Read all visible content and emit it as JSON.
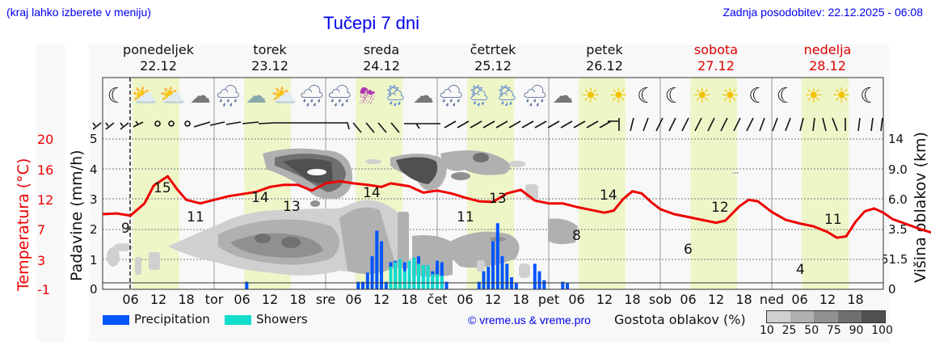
{
  "header": {
    "left_note": "(kraj lahko izberete v meniju)",
    "title": "Tučepi 7 dni",
    "updated": "Zadnja posodobitev: 22.12.2025 - 06:08"
  },
  "days": [
    {
      "name": "ponedeljek",
      "date": "22.12",
      "weekend": false
    },
    {
      "name": "torek",
      "date": "23.12",
      "weekend": false
    },
    {
      "name": "sreda",
      "date": "24.12",
      "weekend": false
    },
    {
      "name": "četrtek",
      "date": "25.12",
      "weekend": false
    },
    {
      "name": "petek",
      "date": "26.12",
      "weekend": false
    },
    {
      "name": "sobota",
      "date": "27.12",
      "weekend": true
    },
    {
      "name": "nedelja",
      "date": "28.12",
      "weekend": true
    }
  ],
  "axes": {
    "left_temp_label": "Temperatura (°C)",
    "left_precip_label": "Padavine (mm/h)",
    "right_label": "Višina oblakov (km)",
    "temp_ticks": [
      "20",
      "16",
      "12",
      "7",
      "3",
      "-1"
    ],
    "precip_ticks": [
      "5",
      "4",
      "3",
      "2",
      "1",
      "0"
    ],
    "cloud_ticks": [
      "14",
      "9.0",
      "6.0",
      "3.5",
      "51.5",
      "0"
    ],
    "x_ticks": [
      "06",
      "12",
      "18",
      "tor",
      "06",
      "12",
      "18",
      "sre",
      "06",
      "12",
      "18",
      "čet",
      "06",
      "12",
      "18",
      "pet",
      "06",
      "12",
      "18",
      "sob",
      "06",
      "12",
      "18",
      "ned",
      "06",
      "12",
      "18"
    ]
  },
  "weather_icons": [
    "moon",
    "sun-cloud",
    "sun-cloud",
    "moon-cloud",
    "moon-cloud-rain",
    "cloud",
    "sun-cloud",
    "cloud-rain",
    "moon-cloud-rain",
    "sun-thunder",
    "sun-cloud-rain",
    "moon-cloud",
    "moon-cloud-rain",
    "sun-cloud-rain",
    "sun-cloud-rain",
    "moon-cloud-rain",
    "moon-cloud",
    "sun",
    "sun",
    "moon",
    "moon",
    "sun",
    "sun",
    "moon",
    "moon",
    "sun",
    "sun",
    "moon"
  ],
  "legend": {
    "precipitation": "Precipitation",
    "showers": "Showers",
    "precip_color": "#0055ff",
    "showers_color": "#11ddcc",
    "copyright": "© vreme.us & vreme.pro",
    "cloud_density_label": "Gostota oblakov (%)",
    "cloud_density_ticks": [
      "10",
      "25",
      "50",
      "75",
      "90",
      "100"
    ],
    "cloud_density_colors": [
      "#d0d0d0",
      "#b0b0b0",
      "#909090",
      "#707070",
      "#505050"
    ]
  },
  "chart_data": {
    "type": "line",
    "title": "Tučepi 7 dni",
    "xlabel": "",
    "ylabel": "Padavine (mm/h)",
    "ylim": [
      0,
      5
    ],
    "temp_ylim": [
      -1,
      20
    ],
    "temperature_labels": [
      {
        "time": "22.12 06h",
        "value": 9
      },
      {
        "time": "22.12 14h",
        "value": 15
      },
      {
        "time": "22.12 21h",
        "value": 11
      },
      {
        "time": "23.12 10h",
        "value": 14
      },
      {
        "time": "23.12 18h",
        "value": 13
      },
      {
        "time": "24.12 10h",
        "value": 14
      },
      {
        "time": "25.12 06h",
        "value": 11
      },
      {
        "time": "25.12 14h",
        "value": 13
      },
      {
        "time": "26.12 06h",
        "value": 8
      },
      {
        "time": "26.12 13h",
        "value": 14
      },
      {
        "time": "27.12 06h",
        "value": 6
      },
      {
        "time": "27.12 13h",
        "value": 12
      },
      {
        "time": "28.12 06h",
        "value": 4
      },
      {
        "time": "28.12 14h",
        "value": 11
      }
    ],
    "series": [
      {
        "name": "Temperature (°C)",
        "color": "#ee0000",
        "points": [
          [
            0,
            9.5
          ],
          [
            3,
            9.6
          ],
          [
            6,
            9.3
          ],
          [
            9,
            11
          ],
          [
            11,
            13.5
          ],
          [
            14,
            14.8
          ],
          [
            16,
            13
          ],
          [
            18,
            11.5
          ],
          [
            21,
            11
          ],
          [
            24,
            11.5
          ],
          [
            27,
            12
          ],
          [
            30,
            12.3
          ],
          [
            33,
            12.6
          ],
          [
            36,
            13.3
          ],
          [
            39,
            13.6
          ],
          [
            42,
            13.6
          ],
          [
            45,
            12.8
          ],
          [
            48,
            13.8
          ],
          [
            51,
            14.1
          ],
          [
            54,
            13.8
          ],
          [
            57,
            13.6
          ],
          [
            60,
            13.3
          ],
          [
            62,
            13.8
          ],
          [
            66,
            13.4
          ],
          [
            69,
            12.5
          ],
          [
            72,
            12.8
          ],
          [
            75,
            12.4
          ],
          [
            78,
            11.8
          ],
          [
            81,
            11.3
          ],
          [
            84,
            11.2
          ],
          [
            87,
            12.4
          ],
          [
            90,
            12.9
          ],
          [
            93,
            11.4
          ],
          [
            96,
            11
          ],
          [
            99,
            11
          ],
          [
            102,
            10.5
          ],
          [
            105,
            10.1
          ],
          [
            108,
            9.7
          ],
          [
            110,
            10
          ],
          [
            112,
            11.6
          ],
          [
            114,
            12.7
          ],
          [
            116,
            12.4
          ],
          [
            118,
            11.2
          ],
          [
            120,
            10.2
          ],
          [
            123,
            9.5
          ],
          [
            126,
            9.1
          ],
          [
            129,
            8.7
          ],
          [
            132,
            8.3
          ],
          [
            134,
            8.6
          ],
          [
            137,
            10.6
          ],
          [
            139,
            11.5
          ],
          [
            141,
            11.3
          ],
          [
            144,
            9.8
          ],
          [
            147,
            8.7
          ],
          [
            150,
            8.2
          ],
          [
            153,
            7.8
          ],
          [
            156,
            7
          ],
          [
            158,
            6.2
          ],
          [
            160,
            6.4
          ],
          [
            162,
            8.4
          ],
          [
            164,
            9.9
          ],
          [
            166,
            10.3
          ],
          [
            168,
            9.7
          ],
          [
            170,
            8.8
          ],
          [
            173,
            8.1
          ],
          [
            176,
            7.4
          ],
          [
            179,
            6.8
          ],
          [
            180,
            6.5
          ]
        ]
      },
      {
        "name": "Precipitation (mm/h)",
        "color": "#0055ff",
        "points": [
          [
            31,
            0.25
          ],
          [
            55,
            0.25
          ],
          [
            56,
            0.25
          ],
          [
            57,
            0.55
          ],
          [
            58,
            1.1
          ],
          [
            59,
            1.95
          ],
          [
            60,
            1.6
          ],
          [
            61,
            0.25
          ],
          [
            62,
            0.9
          ],
          [
            63,
            0.95
          ],
          [
            64,
            0.85
          ],
          [
            65,
            0.9
          ],
          [
            66,
            0.8
          ],
          [
            67,
            1.05
          ],
          [
            68,
            1.1
          ],
          [
            69,
            0.8
          ],
          [
            70,
            0.8
          ],
          [
            71,
            0.6
          ],
          [
            72,
            0.95
          ],
          [
            73,
            0.9
          ],
          [
            74,
            0.25
          ],
          [
            81,
            0.25
          ],
          [
            82,
            0.6
          ],
          [
            83,
            0.75
          ],
          [
            84,
            1.6
          ],
          [
            85,
            2.2
          ],
          [
            86,
            1.1
          ],
          [
            87,
            0.85
          ],
          [
            88,
            0.4
          ],
          [
            89,
            0.2
          ],
          [
            93,
            0.85
          ],
          [
            94,
            0.6
          ],
          [
            95,
            0.3
          ],
          [
            99,
            0.25
          ],
          [
            100,
            0.2
          ]
        ]
      },
      {
        "name": "Showers (mm/h)",
        "color": "#11ddcc",
        "points": [
          [
            62,
            0.75
          ],
          [
            63,
            0.9
          ],
          [
            64,
            1.0
          ],
          [
            65,
            0.6
          ],
          [
            66,
            0.95
          ],
          [
            67,
            1.05
          ],
          [
            68,
            0.85
          ],
          [
            69,
            0.8
          ],
          [
            70,
            0.8
          ],
          [
            71,
            0.5
          ],
          [
            72,
            0.5
          ],
          [
            73,
            0.45
          ]
        ]
      }
    ],
    "cloud_density": "grayscale contour field (Gostota oblakov %)",
    "legend_position": "bottom",
    "grid": true
  }
}
